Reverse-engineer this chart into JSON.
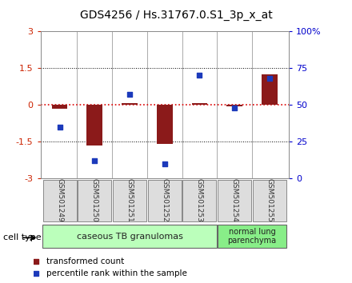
{
  "title": "GDS4256 / Hs.31767.0.S1_3p_x_at",
  "samples": [
    "GSM501249",
    "GSM501250",
    "GSM501251",
    "GSM501252",
    "GSM501253",
    "GSM501254",
    "GSM501255"
  ],
  "red_values": [
    -0.15,
    -1.65,
    0.05,
    -1.6,
    0.08,
    -0.05,
    1.25
  ],
  "blue_values": [
    35,
    12,
    57,
    10,
    70,
    48,
    68
  ],
  "ylim_left": [
    -3,
    3
  ],
  "ylim_right": [
    0,
    100
  ],
  "yticks_left": [
    -3,
    -1.5,
    0,
    1.5,
    3
  ],
  "yticks_left_labels": [
    "-3",
    "-1.5",
    "0",
    "1.5",
    "3"
  ],
  "yticks_right": [
    0,
    25,
    50,
    75,
    100
  ],
  "yticks_right_labels": [
    "0",
    "25",
    "50",
    "75",
    "100%"
  ],
  "red_color": "#8B1A1A",
  "blue_color": "#1C3ABB",
  "group1_label": "caseous TB granulomas",
  "group1_color": "#BBFFBB",
  "group2_label": "normal lung\nparenchyma",
  "group2_color": "#88EE88",
  "cell_type_label": "cell type",
  "legend_red": "transformed count",
  "legend_blue": "percentile rank within the sample",
  "bar_width": 0.45,
  "hline_color": "#DD0000",
  "bg_color": "#FFFFFF",
  "sample_box_color": "#DDDDDD",
  "sample_label_color": "#333333",
  "tick_left_color": "#CC2200",
  "tick_right_color": "#0000CC"
}
